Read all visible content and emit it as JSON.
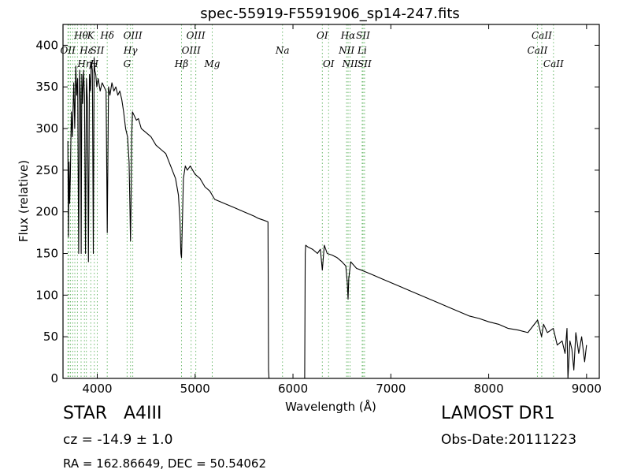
{
  "chart_data": {
    "type": "line",
    "title": "spec-55919-F5591906_sp14-247.fits",
    "xlabel": "Wavelength (Å)",
    "ylabel": "Flux (relative)",
    "xlim": [
      3650,
      9130
    ],
    "ylim": [
      0,
      425
    ],
    "xticks": [
      4000,
      5000,
      6000,
      7000,
      8000,
      9000
    ],
    "yticks": [
      0,
      50,
      100,
      150,
      200,
      250,
      300,
      350,
      400
    ],
    "grid": false,
    "line_color": "#000000",
    "line_marker_color": "#6ab86a",
    "series": [
      {
        "x": [
          3700,
          3705,
          3712,
          3718,
          3725,
          3735,
          3745,
          3760,
          3770,
          3780,
          3790,
          3800,
          3810,
          3820,
          3830,
          3836,
          3842,
          3850,
          3860,
          3870,
          3880,
          3890,
          3900,
          3910,
          3920,
          3930,
          3940,
          3950,
          3960,
          3968,
          3975,
          3985,
          3995,
          4010,
          4030,
          4050,
          4070,
          4090,
          4102,
          4115,
          4130,
          4150,
          4170,
          4190,
          4210,
          4230,
          4250,
          4270,
          4290,
          4310,
          4325,
          4335,
          4340,
          4345,
          4352,
          4360,
          4380,
          4400,
          4420,
          4450,
          4500,
          4550,
          4600,
          4650,
          4700,
          4750,
          4800,
          4830,
          4845,
          4855,
          4861,
          4868,
          4880,
          4900,
          4920,
          4950,
          5000,
          5050,
          5100,
          5150,
          5200,
          5300,
          5400,
          5500,
          5600,
          5650,
          5700,
          5745,
          5750,
          5755,
          5800,
          6000,
          6100,
          6120,
          6125,
          6130,
          6150,
          6200,
          6250,
          6280,
          6300,
          6320,
          6350,
          6400,
          6450,
          6500,
          6540,
          6555,
          6563,
          6570,
          6590,
          6650,
          6700,
          6800,
          6900,
          7000,
          7100,
          7200,
          7300,
          7400,
          7500,
          7600,
          7700,
          7800,
          7900,
          8000,
          8100,
          8200,
          8300,
          8400,
          8500,
          8540,
          8560,
          8600,
          8660,
          8700,
          8750,
          8780,
          8800,
          8810,
          8830,
          8850,
          8870,
          8890,
          8920,
          8950,
          8980,
          9000
        ],
        "y": [
          285,
          170,
          260,
          210,
          240,
          320,
          290,
          355,
          300,
          375,
          340,
          360,
          150,
          370,
          330,
          150,
          365,
          330,
          370,
          340,
          150,
          360,
          330,
          140,
          365,
          345,
          380,
          370,
          150,
          385,
          370,
          365,
          350,
          360,
          345,
          355,
          350,
          345,
          175,
          350,
          340,
          355,
          345,
          350,
          340,
          345,
          335,
          320,
          300,
          290,
          260,
          200,
          165,
          210,
          290,
          320,
          315,
          310,
          312,
          300,
          295,
          290,
          280,
          275,
          270,
          255,
          240,
          220,
          190,
          150,
          145,
          180,
          240,
          255,
          250,
          255,
          245,
          240,
          230,
          225,
          215,
          210,
          205,
          200,
          195,
          192,
          190,
          188,
          10,
          0,
          0,
          0,
          0,
          0,
          150,
          160,
          158,
          155,
          150,
          155,
          130,
          160,
          150,
          148,
          145,
          140,
          135,
          115,
          95,
          120,
          140,
          132,
          130,
          125,
          120,
          115,
          110,
          105,
          100,
          95,
          90,
          85,
          80,
          75,
          72,
          68,
          65,
          60,
          58,
          55,
          70,
          50,
          65,
          55,
          60,
          40,
          45,
          30,
          60,
          0,
          45,
          35,
          10,
          55,
          30,
          50,
          20,
          40
        ]
      }
    ],
    "lines": [
      {
        "x": 3700,
        "label": "OII",
        "row": 1
      },
      {
        "x": 3710,
        "label": "",
        "row": 0
      },
      {
        "x": 3727,
        "label": "",
        "row": 0
      },
      {
        "x": 3750,
        "label": "",
        "row": 0
      },
      {
        "x": 3771,
        "label": "",
        "row": 0
      },
      {
        "x": 3798,
        "label": "",
        "row": 0
      },
      {
        "x": 3835,
        "label": "Hθ",
        "row": 0
      },
      {
        "x": 3869,
        "label": "Hη",
        "row": 2
      },
      {
        "x": 3889,
        "label": "Hε",
        "row": 1
      },
      {
        "x": 3934,
        "label": "K",
        "row": 0
      },
      {
        "x": 3970,
        "label": "H",
        "row": 2
      },
      {
        "x": 4000,
        "label": "SII",
        "row": 1
      },
      {
        "x": 4102,
        "label": "Hδ",
        "row": 0
      },
      {
        "x": 4305,
        "label": "G",
        "row": 2
      },
      {
        "x": 4340,
        "label": "Hγ",
        "row": 1
      },
      {
        "x": 4363,
        "label": "OIII",
        "row": 0
      },
      {
        "x": 4861,
        "label": "Hβ",
        "row": 2
      },
      {
        "x": 4959,
        "label": "OIII",
        "row": 1
      },
      {
        "x": 5007,
        "label": "OIII",
        "row": 0
      },
      {
        "x": 5175,
        "label": "Mg",
        "row": 2
      },
      {
        "x": 5893,
        "label": "Na",
        "row": 1
      },
      {
        "x": 6300,
        "label": "OI",
        "row": 0
      },
      {
        "x": 6364,
        "label": "OI",
        "row": 2
      },
      {
        "x": 6548,
        "label": "NII",
        "row": 1
      },
      {
        "x": 6563,
        "label": "Hα",
        "row": 0
      },
      {
        "x": 6583,
        "label": "NII",
        "row": 2
      },
      {
        "x": 6707,
        "label": "Li",
        "row": 1
      },
      {
        "x": 6716,
        "label": "SII",
        "row": 0
      },
      {
        "x": 6731,
        "label": "SII",
        "row": 2
      },
      {
        "x": 8498,
        "label": "CaII",
        "row": 1
      },
      {
        "x": 8542,
        "label": "CaII",
        "row": 0
      },
      {
        "x": 8662,
        "label": "CaII",
        "row": 2
      }
    ]
  },
  "info": {
    "object_class": "STAR   A4III",
    "survey": "LAMOST DR1",
    "redshift": "cz = -14.9 ± 1.0",
    "obs_date": "Obs-Date:20111223",
    "coordinates": "RA = 162.86649, DEC = 50.54062"
  }
}
